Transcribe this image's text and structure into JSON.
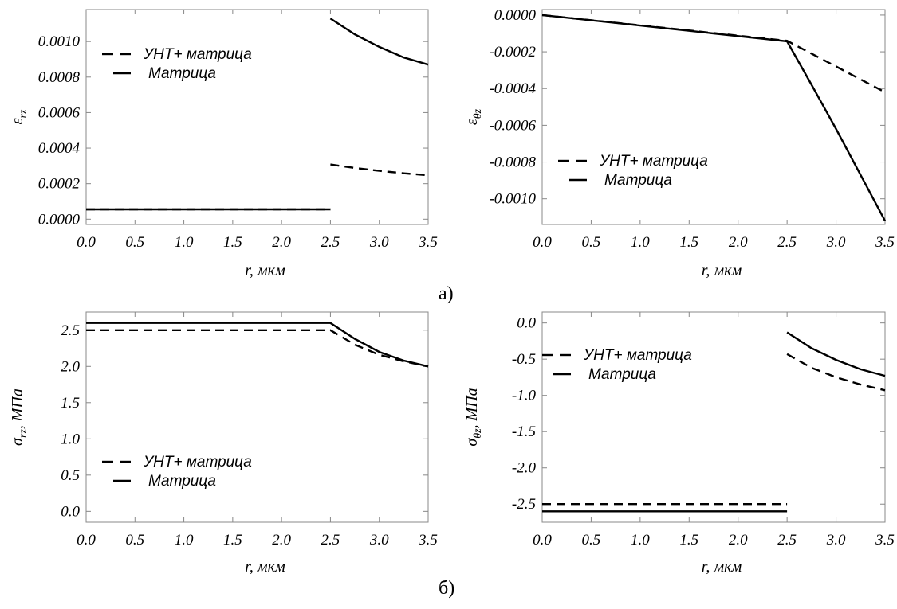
{
  "captions": [
    "а)",
    "б)"
  ],
  "chart_data": [
    {
      "type": "line",
      "xlabel": "r, мкм",
      "ylabel": "ε_rz",
      "ylabel_main": "ε",
      "ylabel_sub": "rz",
      "xlim": [
        0,
        3.5
      ],
      "ylim": [
        -3e-05,
        0.00118
      ],
      "xticks": [
        "0.0",
        "0.5",
        "1.0",
        "1.5",
        "2.0",
        "2.5",
        "3.0",
        "3.5"
      ],
      "yticks": [
        "0.0000",
        "0.0002",
        "0.0004",
        "0.0006",
        "0.0008",
        "0.0010"
      ],
      "grid": false,
      "legend": "top-left",
      "series": [
        {
          "name": "УНТ+ матрица",
          "style": "dashed",
          "segments": [
            [
              [
                0,
                5.5e-05
              ],
              [
                2.5,
                5.5e-05
              ]
            ],
            [
              [
                2.5,
                0.000308
              ],
              [
                2.75,
                0.000288
              ],
              [
                3.0,
                0.000272
              ],
              [
                3.25,
                0.000258
              ],
              [
                3.5,
                0.000247
              ]
            ]
          ]
        },
        {
          "name": "Матрица",
          "style": "solid",
          "segments": [
            [
              [
                0,
                5.5e-05
              ],
              [
                2.5,
                5.5e-05
              ]
            ],
            [
              [
                2.5,
                0.00113
              ],
              [
                2.75,
                0.00104
              ],
              [
                3.0,
                0.00097
              ],
              [
                3.25,
                0.00091
              ],
              [
                3.5,
                0.00087
              ]
            ]
          ]
        }
      ]
    },
    {
      "type": "line",
      "xlabel": "r, мкм",
      "ylabel": "ε_θz",
      "ylabel_main": "ε",
      "ylabel_sub": "θz",
      "xlim": [
        0,
        3.5
      ],
      "ylim": [
        -0.00114,
        3e-05
      ],
      "xticks": [
        "0.0",
        "0.5",
        "1.0",
        "1.5",
        "2.0",
        "2.5",
        "3.0",
        "3.5"
      ],
      "yticks": [
        "0.0000",
        "-0.0002",
        "-0.0004",
        "-0.0006",
        "-0.0008",
        "-0.0010"
      ],
      "grid": false,
      "legend": "bottom-left",
      "series": [
        {
          "name": "УНТ+ матрица",
          "style": "dashed",
          "segments": [
            [
              [
                0,
                0
              ],
              [
                2.5,
                -0.00014
              ],
              [
                2.75,
                -0.00021
              ],
              [
                3.0,
                -0.00028
              ],
              [
                3.25,
                -0.00035
              ],
              [
                3.5,
                -0.00042
              ]
            ]
          ]
        },
        {
          "name": "Матрица",
          "style": "solid",
          "segments": [
            [
              [
                0,
                0
              ],
              [
                2.5,
                -0.000143
              ],
              [
                2.75,
                -0.00038
              ],
              [
                3.0,
                -0.00062
              ],
              [
                3.25,
                -0.00087
              ],
              [
                3.5,
                -0.00112
              ]
            ]
          ]
        }
      ]
    },
    {
      "type": "line",
      "xlabel": "r, мкм",
      "ylabel": "σ_rz, МПа",
      "ylabel_main": "σ",
      "ylabel_sub": "rz",
      "ylabel_suffix": ", МПа",
      "xlim": [
        0,
        3.5
      ],
      "ylim": [
        -0.15,
        2.75
      ],
      "xticks": [
        "0.0",
        "0.5",
        "1.0",
        "1.5",
        "2.0",
        "2.5",
        "3.0",
        "3.5"
      ],
      "yticks": [
        "0.0",
        "0.5",
        "1.0",
        "1.5",
        "2.0",
        "2.5"
      ],
      "grid": false,
      "legend": "bottom-left",
      "series": [
        {
          "name": "УНТ+ матрица",
          "style": "dashed",
          "segments": [
            [
              [
                0,
                2.5
              ],
              [
                2.5,
                2.5
              ],
              [
                2.75,
                2.3
              ],
              [
                3.0,
                2.16
              ],
              [
                3.25,
                2.07
              ],
              [
                3.5,
                2.0
              ]
            ]
          ]
        },
        {
          "name": "Матрица",
          "style": "solid",
          "segments": [
            [
              [
                0,
                2.6
              ],
              [
                2.5,
                2.6
              ],
              [
                2.75,
                2.38
              ],
              [
                3.0,
                2.2
              ],
              [
                3.25,
                2.08
              ],
              [
                3.5,
                2.0
              ]
            ]
          ]
        }
      ]
    },
    {
      "type": "line",
      "xlabel": "r, мкм",
      "ylabel": "σ_θz, МПа",
      "ylabel_main": "σ",
      "ylabel_sub": "θz",
      "ylabel_suffix": ", МПа",
      "xlim": [
        0,
        3.5
      ],
      "ylim": [
        -2.75,
        0.15
      ],
      "xticks": [
        "0.0",
        "0.5",
        "1.0",
        "1.5",
        "2.0",
        "2.5",
        "3.0",
        "3.5"
      ],
      "yticks": [
        "0.0",
        "-0.5",
        "-1.0",
        "-1.5",
        "-2.0",
        "-2.5"
      ],
      "grid": false,
      "legend": "top-left",
      "series": [
        {
          "name": "УНТ+ матрица",
          "style": "dashed",
          "segments": [
            [
              [
                0,
                -2.5
              ],
              [
                2.5,
                -2.5
              ]
            ],
            [
              [
                2.5,
                -0.43
              ],
              [
                2.75,
                -0.62
              ],
              [
                3.0,
                -0.75
              ],
              [
                3.25,
                -0.85
              ],
              [
                3.5,
                -0.93
              ]
            ]
          ]
        },
        {
          "name": "Матрица",
          "style": "solid",
          "segments": [
            [
              [
                0,
                -2.6
              ],
              [
                2.5,
                -2.6
              ]
            ],
            [
              [
                2.5,
                -0.13
              ],
              [
                2.75,
                -0.35
              ],
              [
                3.0,
                -0.51
              ],
              [
                3.25,
                -0.64
              ],
              [
                3.5,
                -0.73
              ]
            ]
          ]
        }
      ]
    }
  ]
}
